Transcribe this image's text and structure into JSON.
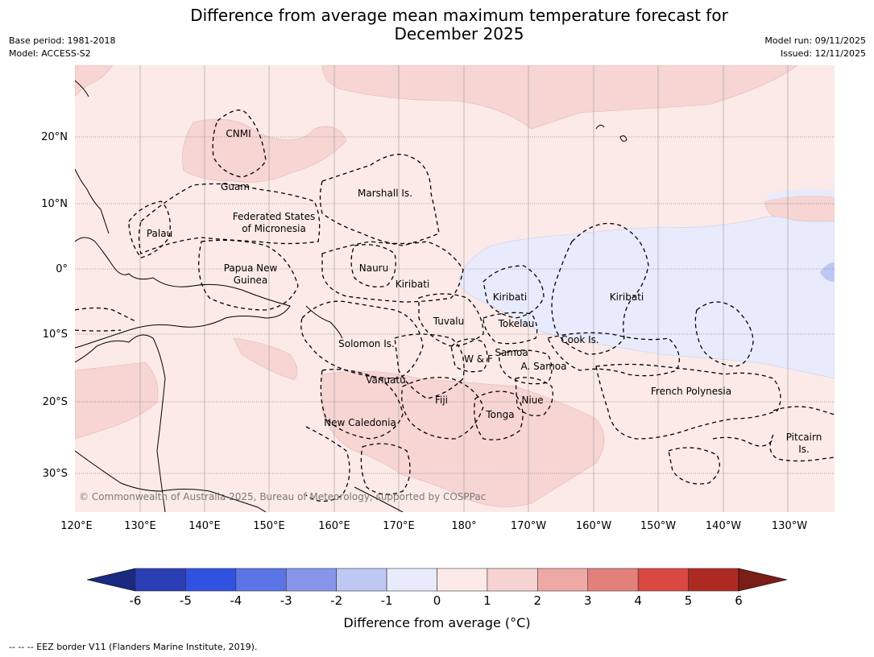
{
  "title_line1": "Difference from average mean maximum temperature forecast for",
  "title_line2": "December 2025",
  "base_period": "Base period: 1981-2018",
  "model": "Model: ACCESS-S2",
  "model_run": "Model run: 09/11/2025",
  "issued": "Issued: 12/11/2025",
  "copyright": "© Commonwealth of Australia 2025, Bureau of Meteorology, supported by COSPPac",
  "footnote": "--  --  -- EEZ border V11 (Flanders Marine Institute, 2019).",
  "colorbar_label": "Difference from average (°C)",
  "lat_labels": [
    "20°N",
    "10°N",
    "0°",
    "10°S",
    "20°S",
    "30°S"
  ],
  "lon_labels": [
    "120°E",
    "130°E",
    "140°E",
    "150°E",
    "160°E",
    "170°E",
    "180°",
    "170°W",
    "160°W",
    "150°W",
    "140°W",
    "130°W"
  ],
  "colorbar_ticks": [
    "-6",
    "-5",
    "-4",
    "-3",
    "-2",
    "-1",
    "0",
    "1",
    "2",
    "3",
    "4",
    "5",
    "6"
  ],
  "colorbar_colors": [
    "#1a2a80",
    "#2a3db5",
    "#2f52e0",
    "#5b74e6",
    "#8796eb",
    "#bfc7f3",
    "#e8ebfb",
    "#fbeae8",
    "#f6d3d1",
    "#eea9a5",
    "#e4807b",
    "#d94841",
    "#ad2a22",
    "#7a1e18"
  ],
  "region_labels": {
    "cnmi": "CNMI",
    "guam": "Guam",
    "marshall": "Marshall Is.",
    "fsm1": "Federated States",
    "fsm2": "of Micronesia",
    "palau": "Palau",
    "png1": "Papua New",
    "png2": "Guinea",
    "nauru": "Nauru",
    "kiribati_w": "Kiribati",
    "kiribati_c": "Kiribati",
    "kiribati_e": "Kiribati",
    "tuvalu": "Tuvalu",
    "tokelau": "Tokelau",
    "solomon": "Solomon Is.",
    "samoa": "Samoa",
    "wf": "W & F",
    "asamoa": "A. Samoa",
    "cook": "Cook Is.",
    "vanuatu": "Vanuatu",
    "fiji": "Fiji",
    "niue": "Niue",
    "tonga": "Tonga",
    "newcal": "New Caledonia",
    "frpoly": "French Polynesia",
    "pitcairn1": "Pitcairn",
    "pitcairn2": "Is."
  }
}
